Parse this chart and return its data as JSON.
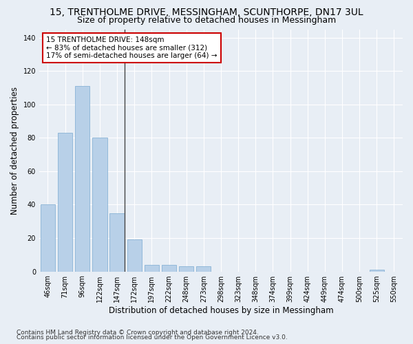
{
  "title": "15, TRENTHOLME DRIVE, MESSINGHAM, SCUNTHORPE, DN17 3UL",
  "subtitle": "Size of property relative to detached houses in Messingham",
  "xlabel": "Distribution of detached houses by size in Messingham",
  "ylabel": "Number of detached properties",
  "footnote1": "Contains HM Land Registry data © Crown copyright and database right 2024.",
  "footnote2": "Contains public sector information licensed under the Open Government Licence v3.0.",
  "categories": [
    "46sqm",
    "71sqm",
    "96sqm",
    "122sqm",
    "147sqm",
    "172sqm",
    "197sqm",
    "222sqm",
    "248sqm",
    "273sqm",
    "298sqm",
    "323sqm",
    "348sqm",
    "374sqm",
    "399sqm",
    "424sqm",
    "449sqm",
    "474sqm",
    "500sqm",
    "525sqm",
    "550sqm"
  ],
  "values": [
    40,
    83,
    111,
    80,
    35,
    19,
    4,
    4,
    3,
    3,
    0,
    0,
    0,
    0,
    0,
    0,
    0,
    0,
    0,
    1,
    0
  ],
  "bar_color": "#b8d0e8",
  "bar_edge_color": "#7aaad0",
  "highlight_bar_index": 4,
  "highlight_line_color": "#444444",
  "annotation_line1": "15 TRENTHOLME DRIVE: 148sqm",
  "annotation_line2": "← 83% of detached houses are smaller (312)",
  "annotation_line3": "17% of semi-detached houses are larger (64) →",
  "annotation_box_color": "#ffffff",
  "annotation_box_edge": "#cc0000",
  "ylim": [
    0,
    145
  ],
  "yticks": [
    0,
    20,
    40,
    60,
    80,
    100,
    120,
    140
  ],
  "bg_color": "#e8eef5",
  "plot_bg_color": "#e8eef5",
  "grid_color": "#ffffff",
  "title_fontsize": 10,
  "subtitle_fontsize": 9,
  "axis_label_fontsize": 8.5,
  "tick_fontsize": 7,
  "footnote_fontsize": 6.5,
  "annotation_fontsize": 7.5
}
